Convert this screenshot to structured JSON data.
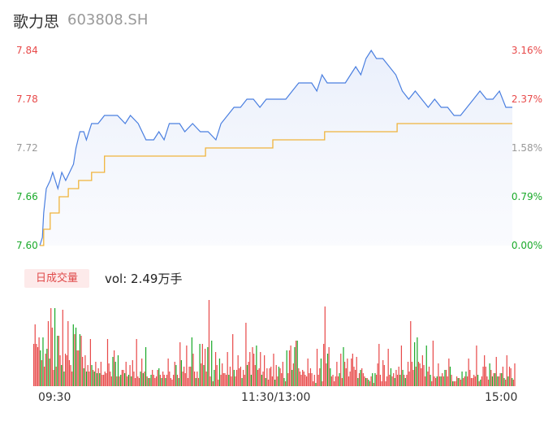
{
  "header": {
    "name": "歌力思",
    "code": "603808.SH"
  },
  "volume_panel": {
    "tag": "日成交量",
    "summary": "vol: 2.49万手"
  },
  "colors": {
    "price": "#4a7fe0",
    "avg": "#f0b43c",
    "up": "#e84a4a",
    "down": "#1aaa2a",
    "neutral": "#999999"
  },
  "chart_data": [
    {
      "type": "line",
      "subtype": "intraday-price",
      "y_ticks_left": [
        "7.84",
        "7.78",
        "7.72",
        "7.66",
        "7.60"
      ],
      "y_ticks_right": [
        "3.16%",
        "2.37%",
        "1.58%",
        "0.79%",
        "0.00%"
      ],
      "ylim": [
        7.6,
        7.84
      ],
      "x_ticks": [
        "09:30",
        "11:30/13:00",
        "15:00"
      ],
      "series": [
        {
          "key": "price",
          "points": [
            [
              0,
              7.6
            ],
            [
              2,
              7.61
            ],
            [
              3,
              7.64
            ],
            [
              5,
              7.67
            ],
            [
              8,
              7.68
            ],
            [
              10,
              7.69
            ],
            [
              14,
              7.67
            ],
            [
              17,
              7.69
            ],
            [
              20,
              7.68
            ],
            [
              23,
              7.69
            ],
            [
              26,
              7.7
            ],
            [
              28,
              7.72
            ],
            [
              31,
              7.74
            ],
            [
              34,
              7.74
            ],
            [
              36,
              7.73
            ],
            [
              40,
              7.75
            ],
            [
              45,
              7.75
            ],
            [
              50,
              7.76
            ],
            [
              60,
              7.76
            ],
            [
              66,
              7.75
            ],
            [
              70,
              7.76
            ],
            [
              76,
              7.75
            ],
            [
              82,
              7.73
            ],
            [
              88,
              7.73
            ],
            [
              92,
              7.74
            ],
            [
              96,
              7.73
            ],
            [
              100,
              7.75
            ],
            [
              108,
              7.75
            ],
            [
              112,
              7.74
            ],
            [
              118,
              7.75
            ],
            [
              124,
              7.74
            ],
            [
              130,
              7.74
            ],
            [
              136,
              7.73
            ],
            [
              140,
              7.75
            ],
            [
              145,
              7.76
            ],
            [
              150,
              7.77
            ],
            [
              155,
              7.77
            ],
            [
              160,
              7.78
            ],
            [
              165,
              7.78
            ],
            [
              170,
              7.77
            ],
            [
              175,
              7.78
            ],
            [
              180,
              7.78
            ],
            [
              185,
              7.78
            ],
            [
              190,
              7.78
            ],
            [
              195,
              7.79
            ],
            [
              200,
              7.8
            ],
            [
              205,
              7.8
            ],
            [
              210,
              7.8
            ],
            [
              214,
              7.79
            ],
            [
              218,
              7.81
            ],
            [
              222,
              7.8
            ],
            [
              228,
              7.8
            ],
            [
              232,
              7.8
            ],
            [
              236,
              7.8
            ],
            [
              240,
              7.81
            ],
            [
              244,
              7.82
            ],
            [
              248,
              7.81
            ],
            [
              252,
              7.83
            ],
            [
              256,
              7.84
            ],
            [
              260,
              7.83
            ],
            [
              265,
              7.83
            ],
            [
              270,
              7.82
            ],
            [
              275,
              7.81
            ],
            [
              280,
              7.79
            ],
            [
              285,
              7.78
            ],
            [
              290,
              7.79
            ],
            [
              295,
              7.78
            ],
            [
              300,
              7.77
            ],
            [
              305,
              7.78
            ],
            [
              310,
              7.77
            ],
            [
              315,
              7.77
            ],
            [
              320,
              7.76
            ],
            [
              325,
              7.76
            ],
            [
              330,
              7.77
            ],
            [
              335,
              7.78
            ],
            [
              340,
              7.79
            ],
            [
              345,
              7.78
            ],
            [
              350,
              7.78
            ],
            [
              355,
              7.79
            ],
            [
              360,
              7.77
            ],
            [
              365,
              7.77
            ]
          ]
        },
        {
          "key": "avg",
          "points": [
            [
              0,
              7.6
            ],
            [
              3,
              7.62
            ],
            [
              8,
              7.64
            ],
            [
              15,
              7.66
            ],
            [
              22,
              7.67
            ],
            [
              30,
              7.68
            ],
            [
              40,
              7.69
            ],
            [
              50,
              7.71
            ],
            [
              60,
              7.71
            ],
            [
              80,
              7.71
            ],
            [
              100,
              7.71
            ],
            [
              120,
              7.71
            ],
            [
              128,
              7.72
            ],
            [
              150,
              7.72
            ],
            [
              170,
              7.72
            ],
            [
              180,
              7.73
            ],
            [
              200,
              7.73
            ],
            [
              220,
              7.74
            ],
            [
              240,
              7.74
            ],
            [
              260,
              7.74
            ],
            [
              276,
              7.75
            ],
            [
              300,
              7.75
            ],
            [
              330,
              7.75
            ],
            [
              365,
              7.75
            ]
          ]
        }
      ]
    },
    {
      "type": "bar",
      "subtype": "volume",
      "values": [
        26,
        38,
        26,
        24,
        30,
        22,
        16,
        30,
        12,
        20,
        23,
        40,
        17,
        48,
        36,
        10,
        48,
        12,
        31,
        31,
        19,
        13,
        47,
        9,
        20,
        19,
        40,
        16,
        13,
        9,
        38,
        32,
        36,
        22,
        22,
        32,
        31,
        18,
        11,
        19,
        9,
        13,
        9,
        29,
        13,
        10,
        9,
        15,
        8,
        11,
        8,
        15,
        7,
        7,
        9,
        8,
        29,
        14,
        9,
        6,
        18,
        22,
        15,
        6,
        19,
        6,
        7,
        10,
        10,
        8,
        15,
        6,
        7,
        13,
        6,
        16,
        9,
        5,
        29,
        6,
        5,
        9,
        17,
        8,
        9,
        24,
        6,
        5,
        5,
        7,
        10,
        7,
        5,
        6,
        10,
        11,
        7,
        5,
        9,
        7,
        5,
        7,
        17,
        9,
        5,
        4,
        7,
        15,
        13,
        7,
        5,
        27,
        16,
        9,
        12,
        8,
        25,
        5,
        12,
        12,
        30,
        20,
        9,
        5,
        9,
        5,
        26,
        14,
        26,
        13,
        23,
        9,
        24,
        53,
        6,
        28,
        3,
        10,
        21,
        13,
        4,
        17,
        7,
        14,
        8,
        8,
        7,
        21,
        7,
        12,
        6,
        32,
        10,
        6,
        10,
        19,
        11,
        12,
        5,
        10,
        7,
        39,
        13,
        15,
        21,
        7,
        24,
        20,
        13,
        25,
        10,
        11,
        21,
        7,
        9,
        19,
        5,
        11,
        4,
        11,
        12,
        6,
        20,
        4,
        13,
        6,
        12,
        11,
        8,
        15,
        5,
        3,
        22,
        8,
        22,
        25,
        10,
        14,
        24,
        28,
        28,
        11,
        9,
        7,
        10,
        9,
        7,
        6,
        17,
        8,
        11,
        8,
        3,
        7,
        2,
        23,
        7,
        11,
        17,
        3,
        26,
        49,
        14,
        20,
        24,
        11,
        6,
        7,
        3,
        6,
        15,
        6,
        8,
        20,
        5,
        24,
        15,
        11,
        17,
        6,
        9,
        17,
        20,
        12,
        10,
        18,
        5,
        8,
        10,
        11,
        8,
        6,
        5,
        5,
        4,
        3,
        6,
        8,
        2,
        8,
        7,
        14,
        26,
        7,
        3,
        16,
        13,
        3,
        6,
        23,
        7,
        11,
        6,
        8,
        5,
        10,
        7,
        12,
        7,
        25,
        10,
        7,
        5,
        7,
        15,
        9,
        40,
        15,
        10,
        27,
        12,
        30,
        15,
        14,
        11,
        19,
        13,
        6,
        25,
        9,
        12,
        7,
        3,
        28,
        6,
        5,
        6,
        14,
        6,
        6,
        8,
        6,
        10,
        10,
        6,
        17,
        12,
        7,
        3,
        3,
        3,
        6,
        5,
        5,
        4,
        9,
        5,
        6,
        9,
        6,
        17,
        10,
        5,
        5,
        7,
        6,
        25,
        7,
        3,
        4,
        6,
        12,
        19,
        12,
        6,
        4,
        14,
        10,
        6,
        8,
        8,
        18,
        6,
        6,
        8,
        8,
        12,
        5,
        4,
        19,
        6,
        12,
        11,
        5,
        4,
        14
      ],
      "colors": "rrrrrgrgrrgrgrrrgrgrrgrgrrrrrrgrgrrgrrgrgrrrgrgrgrgrrrrrrrrrgrgrgrgrrgrrgrgrrrrrrgrgrgrgrgrrrrrgrgrrgrrrrrrrgrgrgrrrrrrrgrrgrrgrrgrrgrrgrgrrrgrrrrrrgrrrgrrrrrgrrrgrrgrrrgrrrgrrgrrrrrrgrrgrrrgrgrrrgrgrgrrrrrrrrrrrrrgrrrgrrrrgrgrrrrrrgrrgrrrrrrrrrrgrgrrrgrgrrgrgrrrrrrrrrrrgrrgrrrgrgrgrrrrrrgrgrrrrrrgrrgrrrrgrrgrrgrrrgrgrrrgrrgrrgrrrrrrrrgrgrrrrrrgrgrgrgrrgrgrrgrrgrrgrrrgrrrgrgrrgrrgrrrrrrrrrrrrgrrrrrrrrrrgrrrrrgrrgrrrgrr"
    }
  ]
}
